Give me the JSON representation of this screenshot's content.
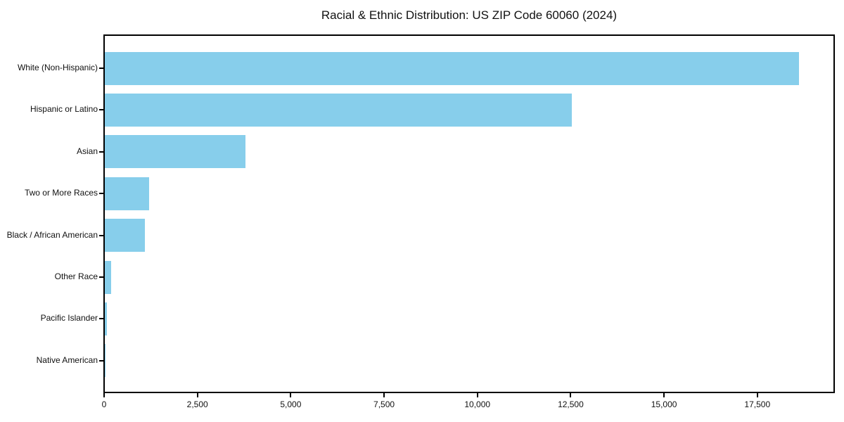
{
  "chart": {
    "title": "Racial & Ethnic Distribution: US ZIP Code 60060 (2024)"
  },
  "chart_data": {
    "type": "bar",
    "orientation": "horizontal",
    "title": "Racial & Ethnic Distribution: US ZIP Code 60060 (2024)",
    "categories": [
      "White (Non-Hispanic)",
      "Hispanic or Latino",
      "Asian",
      "Two or More Races",
      "Black / African American",
      "Other Race",
      "Pacific Islander",
      "Native American"
    ],
    "values": [
      18590,
      12520,
      3770,
      1180,
      1075,
      175,
      55,
      15
    ],
    "bar_color": "#87CEEB",
    "xlabel": "",
    "ylabel": "",
    "xlim": [
      0,
      19520
    ],
    "x_ticks": [
      0,
      2500,
      5000,
      7500,
      10000,
      12500,
      15000,
      17500
    ],
    "x_tick_labels": [
      "0",
      "2,500",
      "5,000",
      "7,500",
      "10,000",
      "12,500",
      "15,000",
      "17,500"
    ],
    "grid": false,
    "legend": null,
    "frame": true
  }
}
